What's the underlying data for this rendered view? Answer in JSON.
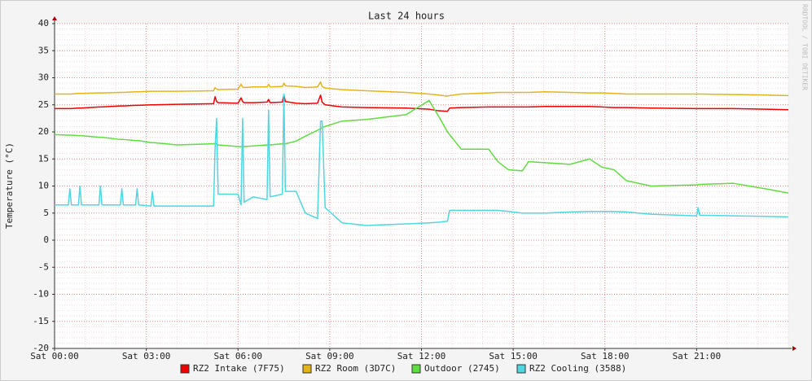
{
  "chart_data": {
    "type": "line",
    "title": "Last 24 hours",
    "ylabel": "Temperature (°C)",
    "watermark": "RRDTOOL / TOBI OETIKER",
    "x": [
      0,
      0.45,
      0.5,
      0.55,
      0.78,
      0.83,
      0.88,
      1.45,
      1.5,
      1.55,
      2.15,
      2.2,
      2.25,
      2.65,
      2.7,
      2.75,
      3.15,
      3.2,
      3.25,
      4,
      5.2,
      5.25,
      5.3,
      5.35,
      6.0,
      6.1,
      6.15,
      6.2,
      6.5,
      6.95,
      7.0,
      7.05,
      7.45,
      7.5,
      7.55,
      7.9,
      8.2,
      8.6,
      8.7,
      8.75,
      8.85,
      9.4,
      10.2,
      11.5,
      12.25,
      12.55,
      12.85,
      12.92,
      13.3,
      14.2,
      14.5,
      14.85,
      15.3,
      15.5,
      16.06,
      16.86,
      17.5,
      17.9,
      18.3,
      18.7,
      19.5,
      21.0,
      21.05,
      21.1,
      22.2,
      23.25,
      24
    ],
    "series": [
      {
        "name": "RZ2 Intake (7F75)",
        "color": "#ee0000",
        "values": [
          24.3,
          24.3,
          24.3,
          24.3,
          24.4,
          24.4,
          24.4,
          24.6,
          24.6,
          24.6,
          24.8,
          24.8,
          24.8,
          24.9,
          24.9,
          24.9,
          25,
          25,
          25,
          25.1,
          25.2,
          26.5,
          25.6,
          25.4,
          25.3,
          26.3,
          25.6,
          25.4,
          25.4,
          25.5,
          26,
          25.4,
          25.5,
          26.8,
          25.6,
          25.3,
          25.2,
          25.3,
          26.8,
          25.5,
          25,
          24.6,
          24.5,
          24.4,
          24.2,
          23.9,
          23.8,
          24.4,
          24.5,
          24.6,
          24.6,
          24.6,
          24.6,
          24.6,
          24.7,
          24.7,
          24.7,
          24.6,
          24.5,
          24.5,
          24.4,
          24.3,
          24.3,
          24.3,
          24.3,
          24.2,
          24.1
        ]
      },
      {
        "name": "RZ2 Room (3D7C)",
        "color": "#e3b51b",
        "values": [
          27,
          27,
          27,
          27,
          27.1,
          27.1,
          27.1,
          27.2,
          27.2,
          27.2,
          27.3,
          27.3,
          27.3,
          27.4,
          27.4,
          27.4,
          27.5,
          27.5,
          27.5,
          27.5,
          27.6,
          28.2,
          27.9,
          27.8,
          27.9,
          28.8,
          28.3,
          28.2,
          28.3,
          28.3,
          28.8,
          28.3,
          28.4,
          29,
          28.5,
          28.4,
          28.2,
          28.3,
          29.2,
          28.4,
          28.1,
          27.8,
          27.6,
          27.3,
          27,
          26.8,
          26.6,
          26.7,
          27,
          27.2,
          27.3,
          27.3,
          27.3,
          27.3,
          27.4,
          27.3,
          27.2,
          27.2,
          27.1,
          27,
          27,
          27,
          27,
          27,
          26.9,
          26.8,
          26.7
        ]
      },
      {
        "name": "Outdoor (2745)",
        "color": "#5fdc40",
        "values": [
          19.5,
          19.4,
          19.4,
          19.4,
          19.3,
          19.3,
          19.3,
          19,
          19,
          19,
          18.6,
          18.6,
          18.6,
          18.4,
          18.4,
          18.4,
          18,
          18,
          18,
          17.6,
          17.8,
          17.8,
          17.8,
          17.6,
          17.3,
          17.3,
          17.3,
          17.3,
          17.4,
          17.6,
          17.6,
          17.6,
          17.8,
          17.8,
          17.8,
          18.3,
          19.2,
          20.3,
          20.6,
          20.8,
          21,
          22,
          22.3,
          23.2,
          25.8,
          23,
          20,
          19.5,
          16.8,
          16.8,
          14.5,
          13,
          12.8,
          14.5,
          14.3,
          14,
          15,
          13.5,
          13,
          11,
          10,
          10.2,
          10.2,
          10.3,
          10.5,
          9.5,
          8.7
        ]
      },
      {
        "name": "RZ2 Cooling (3588)",
        "color": "#4fd6e0",
        "values": [
          6.5,
          6.5,
          9.5,
          6.5,
          6.5,
          10,
          6.5,
          6.5,
          10,
          6.5,
          6.5,
          9.5,
          6.5,
          6.5,
          9.5,
          6.5,
          6.3,
          9,
          6.3,
          6.3,
          6.3,
          17,
          22.5,
          8.5,
          8.5,
          6.5,
          22.5,
          7,
          8,
          7.5,
          24,
          8,
          8.5,
          27,
          9,
          9,
          5,
          4,
          22,
          22,
          6,
          3.2,
          2.7,
          3,
          3.2,
          3.3,
          3.5,
          5.5,
          5.5,
          5.5,
          5.5,
          5.3,
          5,
          5,
          5,
          5.2,
          5.3,
          5.3,
          5.3,
          5.2,
          4.8,
          4.5,
          6,
          4.6,
          4.5,
          4.4,
          4.3
        ]
      }
    ],
    "xlim": [
      0,
      24
    ],
    "xticks": [
      {
        "value": 0,
        "label": "Sat 00:00"
      },
      {
        "value": 3,
        "label": "Sat 03:00"
      },
      {
        "value": 6,
        "label": "Sat 06:00"
      },
      {
        "value": 9,
        "label": "Sat 09:00"
      },
      {
        "value": 12,
        "label": "Sat 12:00"
      },
      {
        "value": 15,
        "label": "Sat 15:00"
      },
      {
        "value": 18,
        "label": "Sat 18:00"
      },
      {
        "value": 21,
        "label": "Sat 21:00"
      }
    ],
    "ylim": [
      -20,
      40
    ],
    "yticks": [
      -20,
      -15,
      -10,
      -5,
      0,
      5,
      10,
      15,
      20,
      25,
      30,
      35,
      40
    ],
    "grid": true
  }
}
